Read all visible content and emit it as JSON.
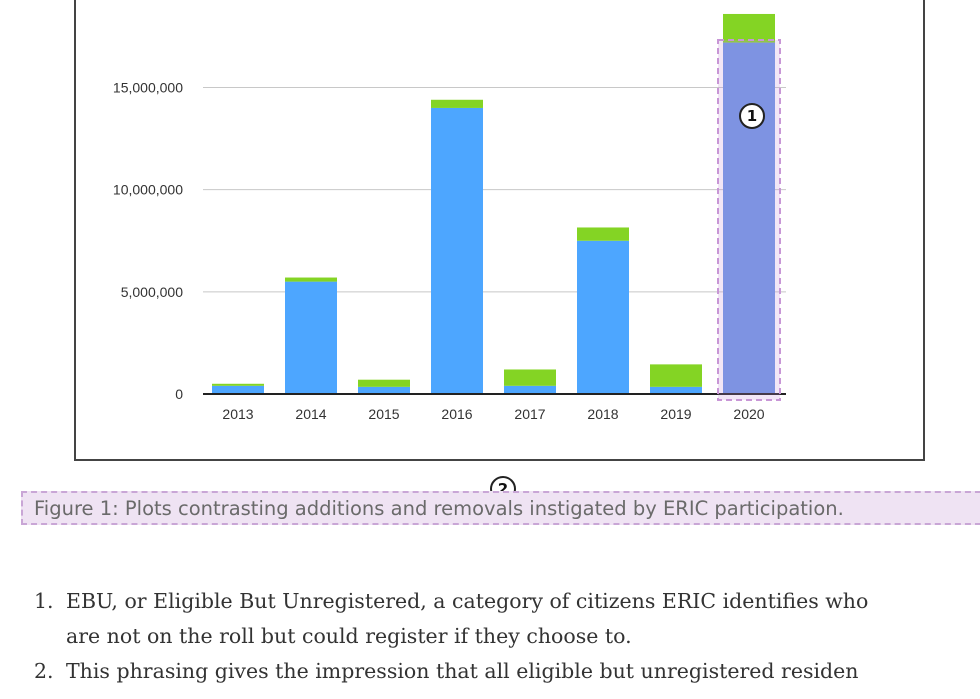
{
  "chart_data": {
    "type": "bar",
    "stacked": true,
    "title": "",
    "xlabel": "",
    "ylabel": "",
    "categories": [
      "2013",
      "2014",
      "2015",
      "2016",
      "2017",
      "2018",
      "2019",
      "2020"
    ],
    "series": [
      {
        "color": "#4da6ff",
        "values": [
          400000,
          5500000,
          350000,
          14000000,
          400000,
          7500000,
          350000,
          17200000
        ]
      },
      {
        "color": "#84d424",
        "values": [
          100000,
          200000,
          350000,
          400000,
          800000,
          650000,
          1100000,
          1400000
        ]
      }
    ],
    "ylim": [
      0,
      18500000
    ],
    "yticks": [
      0,
      5000000,
      10000000,
      15000000
    ],
    "ytick_labels": [
      "0",
      "5,000,000",
      "10,000,000",
      "15,000,000"
    ],
    "grid": true,
    "highlight_category": "2020",
    "highlight_color": "#6b95e6"
  },
  "annotations": {
    "marker_1": "1",
    "marker_2": "2"
  },
  "caption": "Figure 1: Plots contrasting additions and removals instigated by ERIC participation.",
  "footnotes": [
    {
      "num": "1.",
      "lines": [
        "EBU, or Eligible But Unregistered, a category of citizens ERIC identifies who",
        "are not on the roll but could register if they choose to."
      ]
    },
    {
      "num": "2.",
      "lines": [
        "This phrasing gives the impression that all eligible but unregistered residen"
      ]
    }
  ]
}
